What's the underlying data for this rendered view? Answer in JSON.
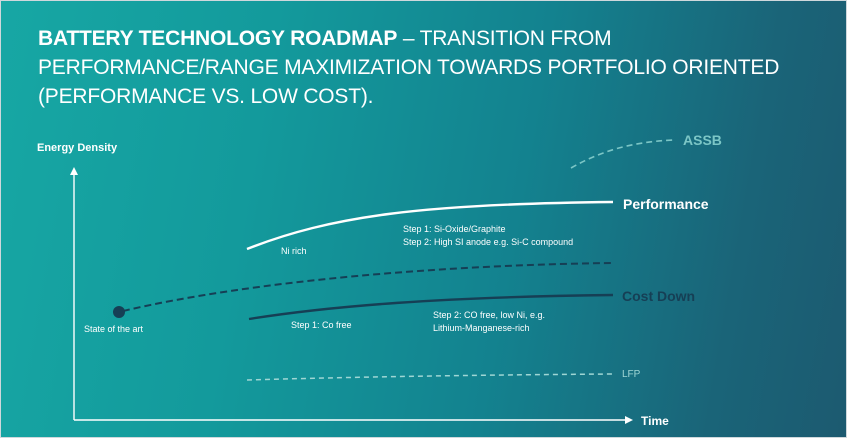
{
  "title": {
    "bold": "BATTERY TECHNOLOGY ROADMAP",
    "rest": " – TRANSITION FROM PERFORMANCE/RANGE MAXIMIZATION TOWARDS PORTFOLIO ORIENTED (PERFORMANCE VS. LOW COST)."
  },
  "axes": {
    "y_label": "Energy Density",
    "x_label": "Time"
  },
  "start_point": {
    "label": "State of the art"
  },
  "lines": {
    "assb": "ASSB",
    "performance": "Performance",
    "cost_down": "Cost Down",
    "lfp": "LFP"
  },
  "annotations": {
    "ni_rich": "Ni rich",
    "perf_step1": "Step 1: Si-Oxide/Graphite",
    "perf_step2": "Step 2: High SI anode e.g. Si-C compound",
    "cost_step1": "Step 1: Co free",
    "cost_step2_line1": "Step 2: CO free, low Ni, e.g.",
    "cost_step2_line2": "Lithium-Manganese-rich"
  },
  "colors": {
    "white": "#ffffff",
    "dark_navy": "#163f55",
    "muted_teal": "#7cc6c6",
    "dashed_teal": "#9fd6d4"
  }
}
